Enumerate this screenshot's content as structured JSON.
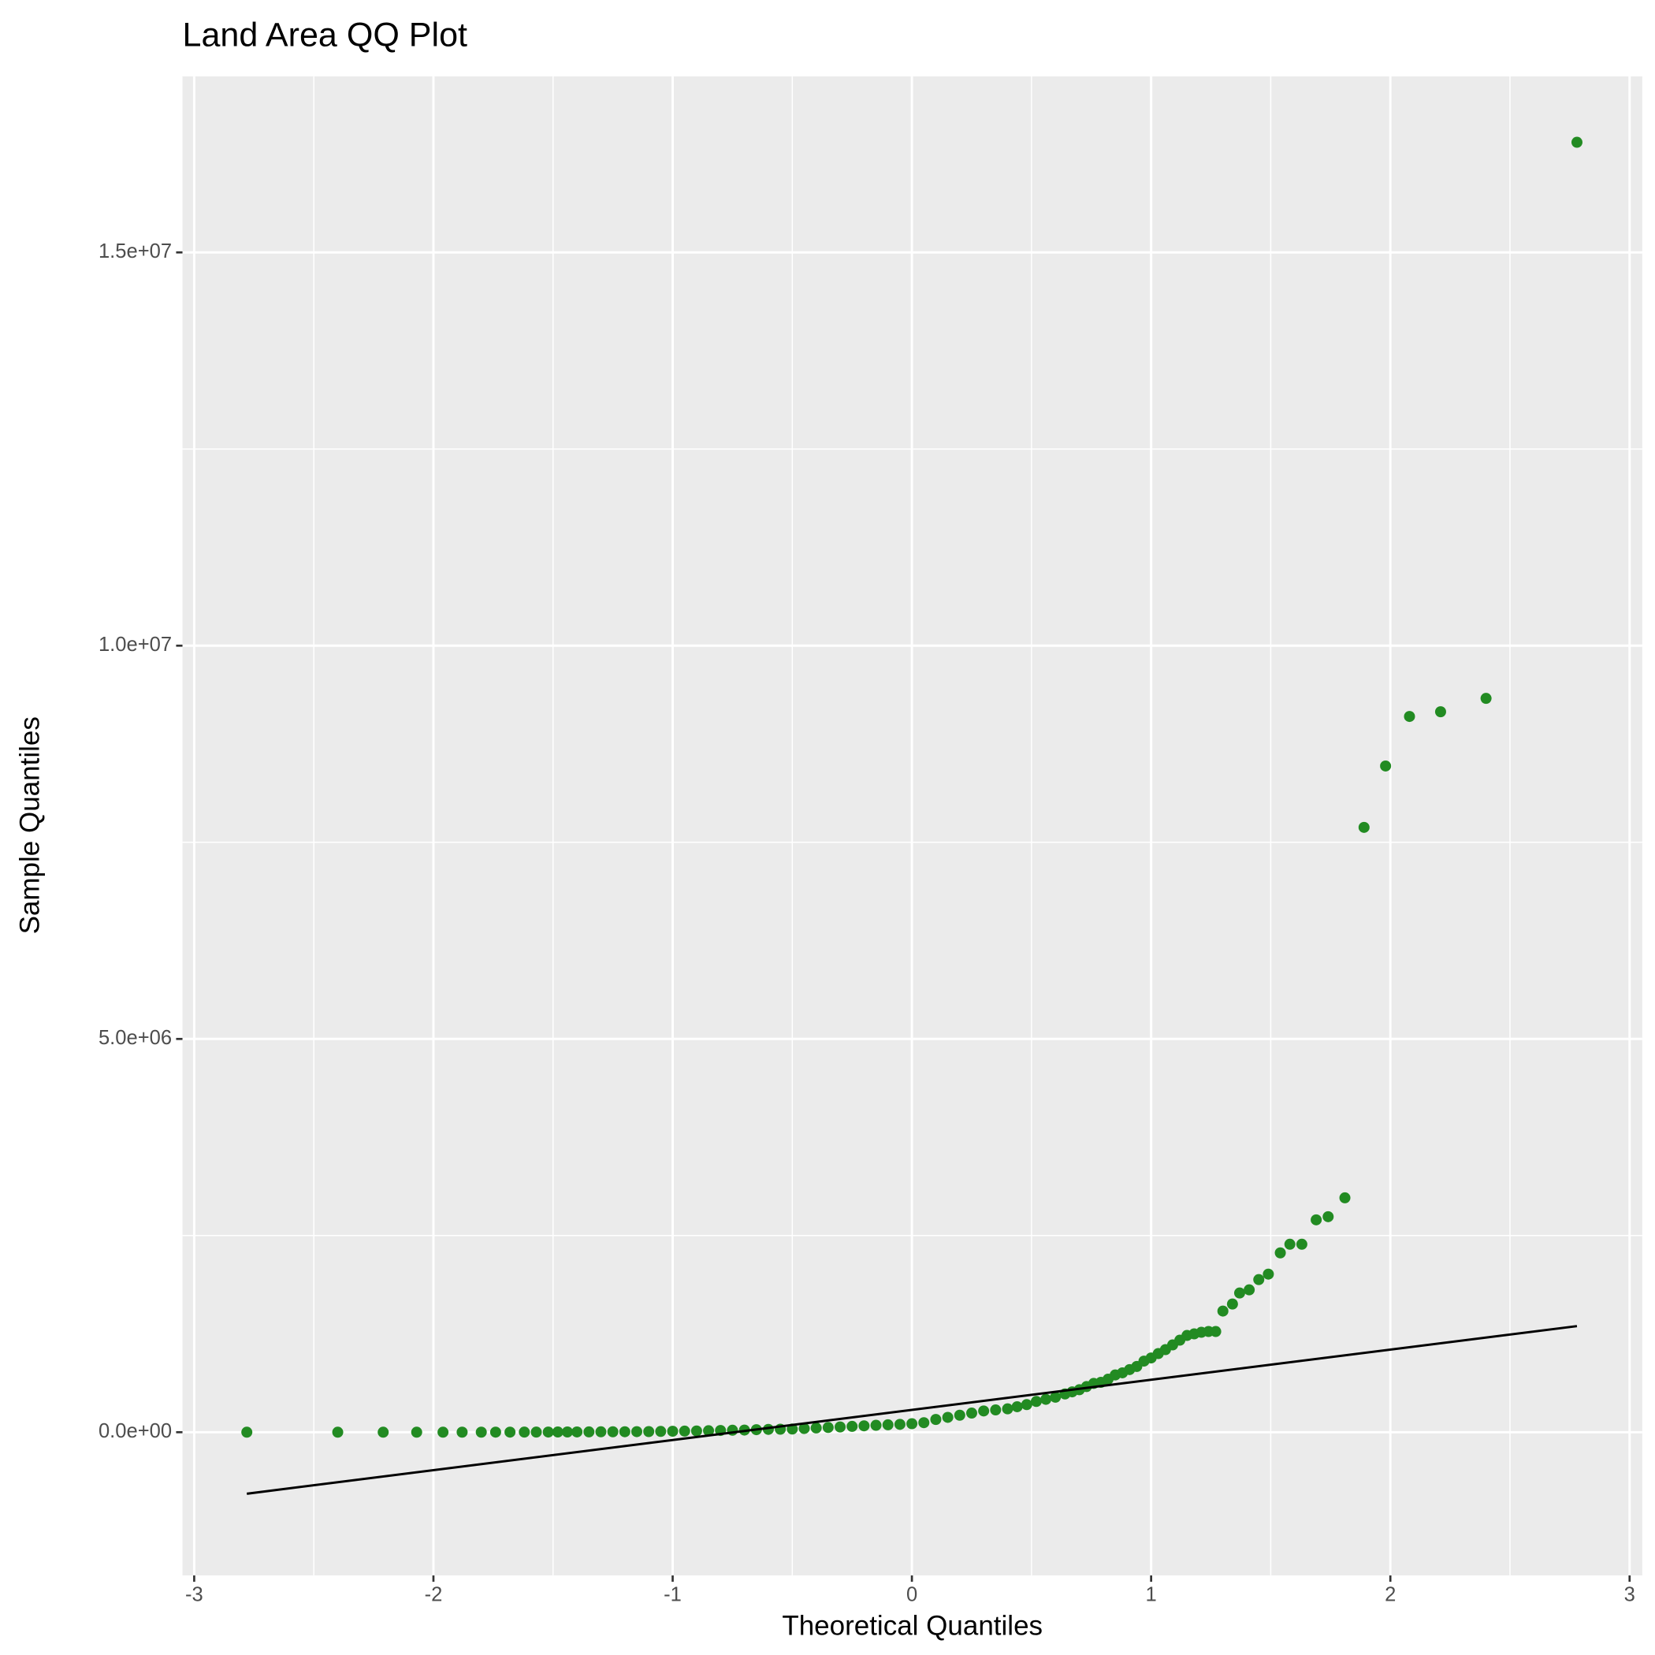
{
  "chart_data": {
    "type": "scatter",
    "title": "Land Area QQ Plot",
    "x_label": "Theoretical Quantiles",
    "y_label": "Sample Quantiles",
    "xlim": [
      -3.049,
      3.053
    ],
    "ylim": [
      -1821000,
      17238000
    ],
    "xticks": [
      -3,
      -2,
      -1,
      0,
      1,
      2,
      3
    ],
    "yticks": [
      {
        "value": 0,
        "label": "0.0e+00"
      },
      {
        "value": 5000000,
        "label": "5.0e+06"
      },
      {
        "value": 10000000,
        "label": "1.0e+07"
      },
      {
        "value": 15000000,
        "label": "1.5e+07"
      }
    ],
    "grid": true,
    "points": {
      "color": "#228B22",
      "x": [
        -2.78,
        -2.4,
        -2.21,
        -2.07,
        -1.96,
        -1.88,
        -1.8,
        -1.74,
        -1.68,
        -1.62,
        -1.57,
        -1.52,
        -1.48,
        -1.44,
        -1.4,
        -1.35,
        -1.3,
        -1.25,
        -1.2,
        -1.15,
        -1.1,
        -1.05,
        -1.0,
        -0.95,
        -0.9,
        -0.85,
        -0.8,
        -0.75,
        -0.7,
        -0.65,
        -0.6,
        -0.55,
        -0.5,
        -0.45,
        -0.4,
        -0.35,
        -0.3,
        -0.25,
        -0.2,
        -0.15,
        -0.1,
        -0.05,
        0.0,
        0.05,
        0.1,
        0.15,
        0.2,
        0.25,
        0.3,
        0.35,
        0.4,
        0.44,
        0.48,
        0.52,
        0.56,
        0.6,
        0.64,
        0.67,
        0.7,
        0.73,
        0.76,
        0.79,
        0.82,
        0.85,
        0.88,
        0.91,
        0.94,
        0.97,
        1.0,
        1.03,
        1.06,
        1.09,
        1.12,
        1.15,
        1.18,
        1.21,
        1.24,
        1.27,
        1.3,
        1.34,
        1.37,
        1.41,
        1.45,
        1.49,
        1.54,
        1.58,
        1.63,
        1.69,
        1.74,
        1.81,
        1.89,
        1.98,
        2.08,
        2.21,
        2.4,
        2.78
      ],
      "values": [
        10,
        50,
        100,
        200,
        300,
        400,
        600,
        800,
        1000,
        1200,
        1500,
        2000,
        2500,
        3000,
        3500,
        4000,
        5000,
        5500,
        6000,
        7000,
        8000,
        10000,
        12000,
        14000,
        16000,
        19000,
        22000,
        25000,
        27000,
        32000,
        36000,
        38000,
        40000,
        47000,
        54000,
        60000,
        67000,
        74000,
        81000,
        88000,
        94000,
        100000,
        108000,
        121000,
        162000,
        189000,
        216000,
        243000,
        270000,
        283000,
        297000,
        324000,
        351000,
        391000,
        418000,
        445000,
        486000,
        513000,
        540000,
        580000,
        620000,
        634000,
        674000,
        728000,
        755000,
        796000,
        836000,
        904000,
        944000,
        1000000,
        1050000,
        1110000,
        1170000,
        1230000,
        1250000,
        1270000,
        1280000,
        1280000,
        1540000,
        1630000,
        1770000,
        1810000,
        1940000,
        2010000,
        2280000,
        2390000,
        2390000,
        2700000,
        2740000,
        2980000,
        7690000,
        8470000,
        9100000,
        9160000,
        9330000,
        16400000
      ]
    },
    "line": {
      "color": "#000000",
      "x": [
        -2.78,
        2.78
      ],
      "values": [
        -782000,
        1349000
      ]
    }
  }
}
